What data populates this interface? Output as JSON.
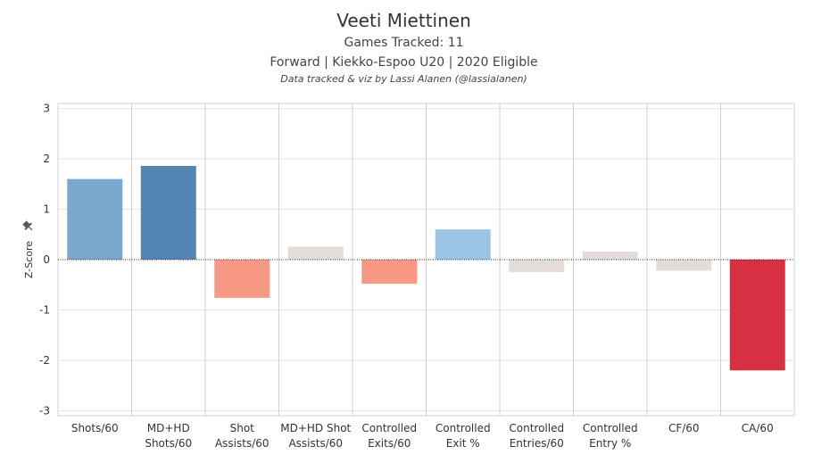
{
  "chart_data": {
    "type": "bar",
    "title": "Veeti Miettinen",
    "subtitle_lines": [
      "Games Tracked: 11",
      "Forward | Kiekko-Espoo U20 | 2020 Eligible"
    ],
    "credit": "Data tracked & viz by Lassi Alanen (@lassialanen)",
    "ylabel": "Z-Score",
    "xlabel": "",
    "ylim": [
      -3.1,
      3.1
    ],
    "yticks": [
      3,
      2,
      1,
      0,
      -1,
      -2,
      -3
    ],
    "categories": [
      [
        "Shots/60"
      ],
      [
        "MD+HD",
        "Shots/60"
      ],
      [
        "Shot",
        "Assists/60"
      ],
      [
        "MD+HD Shot",
        "Assists/60"
      ],
      [
        "Controlled",
        "Exits/60"
      ],
      [
        "Controlled",
        "Exit %"
      ],
      [
        "Controlled",
        "Entries/60"
      ],
      [
        "Controlled",
        "Entry %"
      ],
      [
        "CF/60"
      ],
      [
        "CA/60"
      ]
    ],
    "values": [
      1.6,
      1.86,
      -0.76,
      0.26,
      -0.48,
      0.6,
      -0.25,
      0.16,
      -0.22,
      -2.2
    ],
    "colors": [
      "#7aa8cf",
      "#5585b2",
      "#f89a83",
      "#e3dcd9",
      "#f89a83",
      "#9cc5e5",
      "#e3dcd9",
      "#e3dcd9",
      "#e3dcd9",
      "#d63042"
    ],
    "grid": true,
    "zero_line_style": "dotted"
  }
}
